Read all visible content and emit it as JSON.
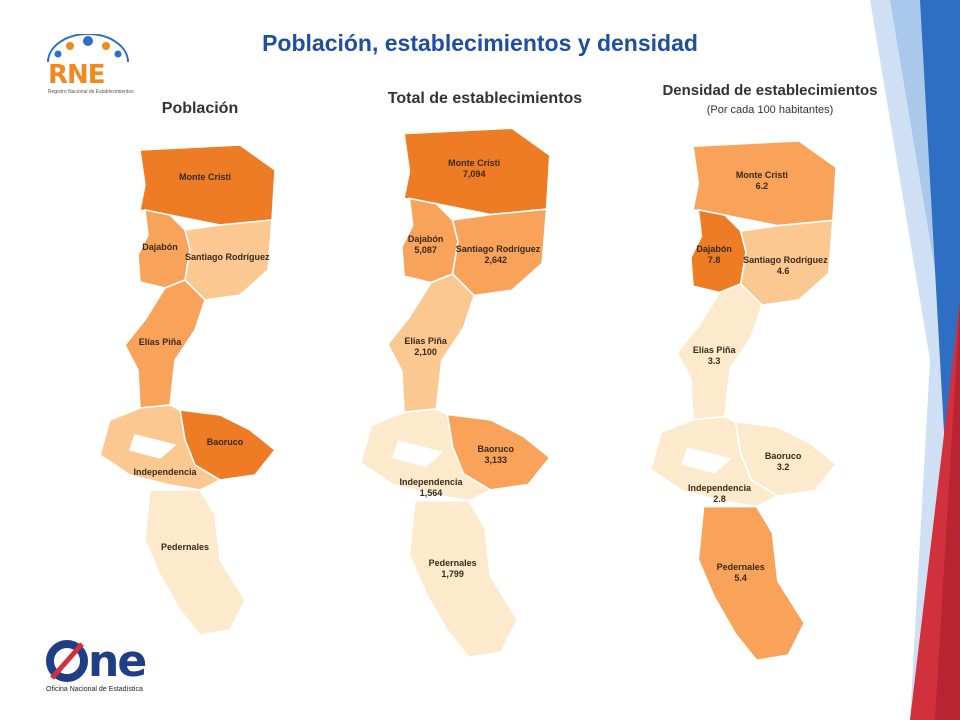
{
  "title": "Población, establecimientos y densidad",
  "colors": {
    "title": "#1f4fa0",
    "scale_1": "#fde9cc",
    "scale_2": "#fbc892",
    "scale_3": "#f8a25a",
    "scale_4": "#ee7c25",
    "deco_blue": "#2e6fc4",
    "deco_light": "#a9c8ea",
    "deco_red": "#d0313d"
  },
  "logos": {
    "rne": {
      "text": "RNE",
      "subtitle": "Registro Nacional de Establecimientos"
    },
    "one": {
      "text": "ne",
      "subtitle": "Oficina Nacional de Estadística"
    }
  },
  "maps": {
    "poblacion": {
      "title": "Población",
      "subtitle": "",
      "provinces": [
        {
          "name": "Monte Cristi",
          "value": "",
          "color": "scale_4"
        },
        {
          "name": "Dajabón",
          "value": "",
          "color": "scale_3"
        },
        {
          "name": "Santiago Rodríguez",
          "value": "",
          "color": "scale_2"
        },
        {
          "name": "Elías Piña",
          "value": "",
          "color": "scale_3"
        },
        {
          "name": "Baoruco",
          "value": "",
          "color": "scale_4"
        },
        {
          "name": "Independencia",
          "value": "",
          "color": "scale_2"
        },
        {
          "name": "Pedernales",
          "value": "",
          "color": "scale_1"
        }
      ]
    },
    "establecimientos": {
      "title": "Total de establecimientos",
      "subtitle": "",
      "provinces": [
        {
          "name": "Monte Cristi",
          "value": "7,094",
          "color": "scale_4"
        },
        {
          "name": "Dajabón",
          "value": "5,087",
          "color": "scale_3"
        },
        {
          "name": "Santiago Rodríguez",
          "value": "2,642",
          "color": "scale_3"
        },
        {
          "name": "Elías Piña",
          "value": "2,100",
          "color": "scale_2"
        },
        {
          "name": "Baoruco",
          "value": "3,133",
          "color": "scale_3"
        },
        {
          "name": "Independencia",
          "value": "1,564",
          "color": "scale_1"
        },
        {
          "name": "Pedernales",
          "value": "1,799",
          "color": "scale_1"
        }
      ]
    },
    "densidad": {
      "title": "Densidad de establecimientos",
      "subtitle": "(Por cada 100 habitantes)",
      "provinces": [
        {
          "name": "Monte Cristi",
          "value": "6.2",
          "color": "scale_3"
        },
        {
          "name": "Dajabón",
          "value": "7.8",
          "color": "scale_4"
        },
        {
          "name": "Santiago Rodríguez",
          "value": "4.6",
          "color": "scale_2"
        },
        {
          "name": "Elías Piña",
          "value": "3.3",
          "color": "scale_1"
        },
        {
          "name": "Baoruco",
          "value": "3.2",
          "color": "scale_1"
        },
        {
          "name": "Independencia",
          "value": "2.8",
          "color": "scale_1"
        },
        {
          "name": "Pedernales",
          "value": "5.4",
          "color": "scale_3"
        }
      ]
    }
  }
}
